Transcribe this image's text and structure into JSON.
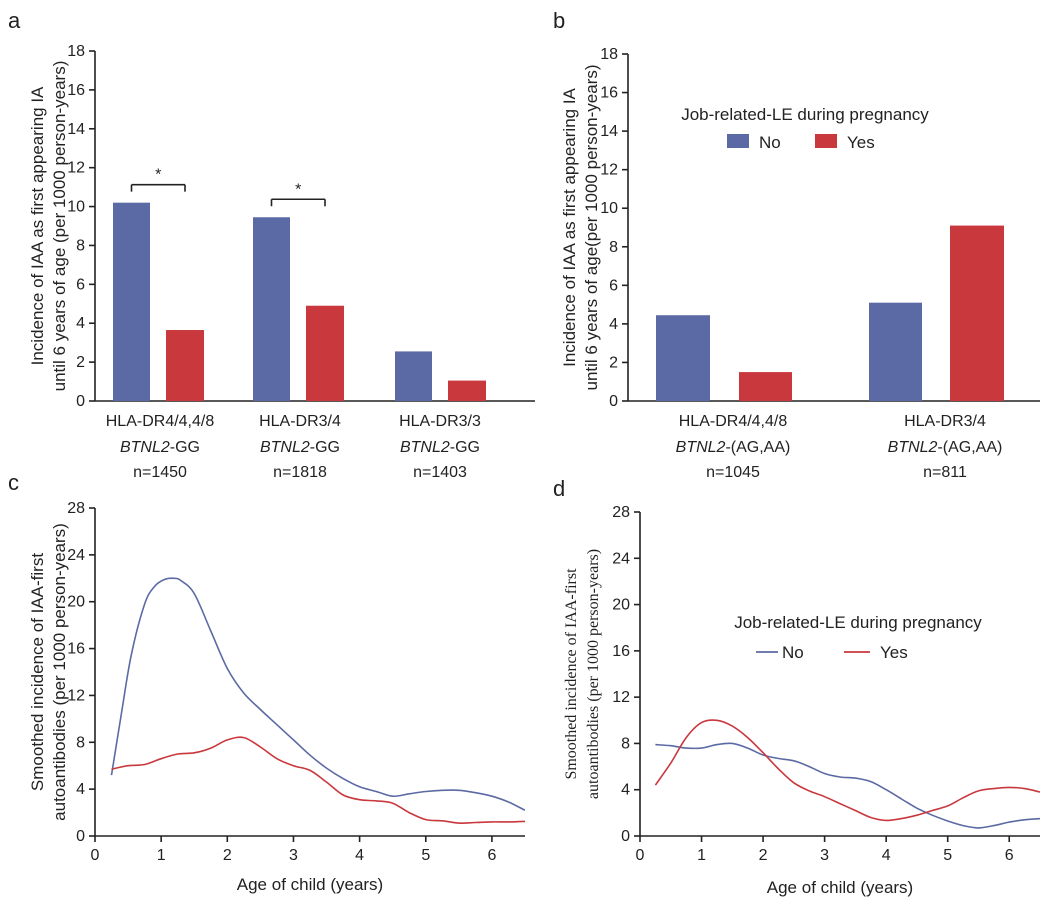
{
  "colors": {
    "no": "#5b6aa4",
    "yes": "#c8383d",
    "axis": "#222222"
  },
  "chart_data": [
    {
      "panel": "a",
      "type": "bar",
      "ylabel": [
        "Incidence of IAA as first appearing IA",
        "until 6 years of age (per 1000 person-years)"
      ],
      "ylim": [
        0,
        18
      ],
      "yticks": [
        "0",
        "2",
        "4",
        "6",
        "8",
        "10",
        "12",
        "14",
        "16",
        "18"
      ],
      "groups": [
        {
          "label1": "HLA-DR4/4,4/8",
          "label2a": "BTNL2",
          "label2b": "-GG",
          "n": "n=1450",
          "no": 10.2,
          "yes": 3.65,
          "sig": "*"
        },
        {
          "label1": "HLA-DR3/4",
          "label2a": "BTNL2",
          "label2b": "-GG",
          "n": "n=1818",
          "no": 9.45,
          "yes": 4.9,
          "sig": "*"
        },
        {
          "label1": "HLA-DR3/3",
          "label2a": "BTNL2",
          "label2b": "-GG",
          "n": "n=1403",
          "no": 2.55,
          "yes": 1.05,
          "sig": ""
        }
      ]
    },
    {
      "panel": "b",
      "type": "bar",
      "ylabel": [
        "Incidence of IAA as first appearing IA",
        "until 6 years of age(per 1000 person-years)"
      ],
      "ylim": [
        0,
        18
      ],
      "yticks": [
        "0",
        "2",
        "4",
        "6",
        "8",
        "10",
        "12",
        "14",
        "16",
        "18"
      ],
      "legend": {
        "title": "Job-related-LE during pregnancy",
        "no": "No",
        "yes": "Yes"
      },
      "groups": [
        {
          "label1": "HLA-DR4/4,4/8",
          "label2a": "BTNL2",
          "label2b": "-(AG,AA)",
          "n": "n=1045",
          "no": 4.45,
          "yes": 1.5
        },
        {
          "label1": "HLA-DR3/4",
          "label2a": "BTNL2",
          "label2b": "-(AG,AA)",
          "n": "n=811",
          "no": 5.1,
          "yes": 9.1
        }
      ]
    },
    {
      "panel": "c",
      "type": "line",
      "ylabel": [
        "Smoothed incidence of IAA-first",
        "autoantibodies (per 1000 person-years)"
      ],
      "xlabel": "Age of child (years)",
      "xlim": [
        0,
        6.5
      ],
      "ylim": [
        0,
        28
      ],
      "xticks": [
        "0",
        "1",
        "2",
        "3",
        "4",
        "5",
        "6"
      ],
      "yticks": [
        "0",
        "4",
        "8",
        "12",
        "16",
        "20",
        "24",
        "28"
      ],
      "series": [
        {
          "name": "No",
          "x": [
            0.25,
            0.4,
            0.55,
            0.75,
            0.9,
            1.05,
            1.2,
            1.3,
            1.5,
            1.75,
            2.0,
            2.25,
            2.5,
            2.75,
            3.0,
            3.25,
            3.5,
            3.75,
            4.0,
            4.25,
            4.5,
            4.75,
            5.0,
            5.25,
            5.5,
            5.75,
            6.0,
            6.25,
            6.5
          ],
          "y": [
            5.2,
            10.5,
            15.5,
            19.8,
            21.3,
            21.9,
            22.0,
            21.8,
            20.7,
            17.5,
            14.3,
            12.2,
            10.8,
            9.5,
            8.2,
            6.9,
            5.8,
            4.9,
            4.2,
            3.8,
            3.4,
            3.6,
            3.8,
            3.9,
            3.9,
            3.7,
            3.4,
            2.9,
            2.2
          ]
        },
        {
          "name": "Yes",
          "x": [
            0.25,
            0.5,
            0.75,
            1.0,
            1.25,
            1.5,
            1.75,
            2.0,
            2.25,
            2.5,
            2.75,
            3.0,
            3.25,
            3.5,
            3.75,
            4.0,
            4.25,
            4.5,
            4.75,
            5.0,
            5.25,
            5.5,
            5.75,
            6.0,
            6.25,
            6.5
          ],
          "y": [
            5.7,
            6.0,
            6.1,
            6.6,
            7.0,
            7.1,
            7.5,
            8.2,
            8.4,
            7.6,
            6.6,
            6.0,
            5.6,
            4.6,
            3.5,
            3.1,
            3.0,
            2.8,
            2.0,
            1.4,
            1.3,
            1.1,
            1.15,
            1.2,
            1.2,
            1.25
          ]
        }
      ]
    },
    {
      "panel": "d",
      "type": "line",
      "ylabel": [
        "Smoothed incidence of IAA-first",
        "autoantibodies (per 1000 person-years)"
      ],
      "xlabel": "Age of child (years)",
      "xlim": [
        0,
        6.5
      ],
      "ylim": [
        0,
        28
      ],
      "xticks": [
        "0",
        "1",
        "2",
        "3",
        "4",
        "5",
        "6"
      ],
      "yticks": [
        "0",
        "4",
        "8",
        "12",
        "16",
        "20",
        "24",
        "28"
      ],
      "legend": {
        "title": "Job-related-LE during pregnancy",
        "no": "No",
        "yes": "Yes"
      },
      "series": [
        {
          "name": "No",
          "x": [
            0.25,
            0.5,
            0.75,
            1.0,
            1.25,
            1.5,
            1.75,
            2.0,
            2.25,
            2.5,
            2.75,
            3.0,
            3.25,
            3.5,
            3.75,
            4.0,
            4.25,
            4.5,
            4.75,
            5.0,
            5.25,
            5.5,
            5.75,
            6.0,
            6.25,
            6.5
          ],
          "y": [
            7.9,
            7.8,
            7.6,
            7.6,
            7.9,
            8.0,
            7.6,
            7.0,
            6.7,
            6.5,
            6.0,
            5.4,
            5.1,
            5.0,
            4.7,
            4.0,
            3.2,
            2.4,
            1.8,
            1.3,
            0.9,
            0.7,
            0.9,
            1.2,
            1.4,
            1.5
          ]
        },
        {
          "name": "Yes",
          "x": [
            0.25,
            0.5,
            0.75,
            1.0,
            1.25,
            1.5,
            1.75,
            2.0,
            2.25,
            2.5,
            2.75,
            3.0,
            3.25,
            3.5,
            3.75,
            4.0,
            4.25,
            4.5,
            4.75,
            5.0,
            5.25,
            5.5,
            5.75,
            6.0,
            6.25,
            6.5
          ],
          "y": [
            4.4,
            6.3,
            8.5,
            9.8,
            10.0,
            9.5,
            8.5,
            7.2,
            5.8,
            4.6,
            3.9,
            3.4,
            2.8,
            2.2,
            1.6,
            1.35,
            1.5,
            1.8,
            2.2,
            2.6,
            3.3,
            3.9,
            4.1,
            4.2,
            4.1,
            3.8
          ]
        }
      ]
    }
  ]
}
